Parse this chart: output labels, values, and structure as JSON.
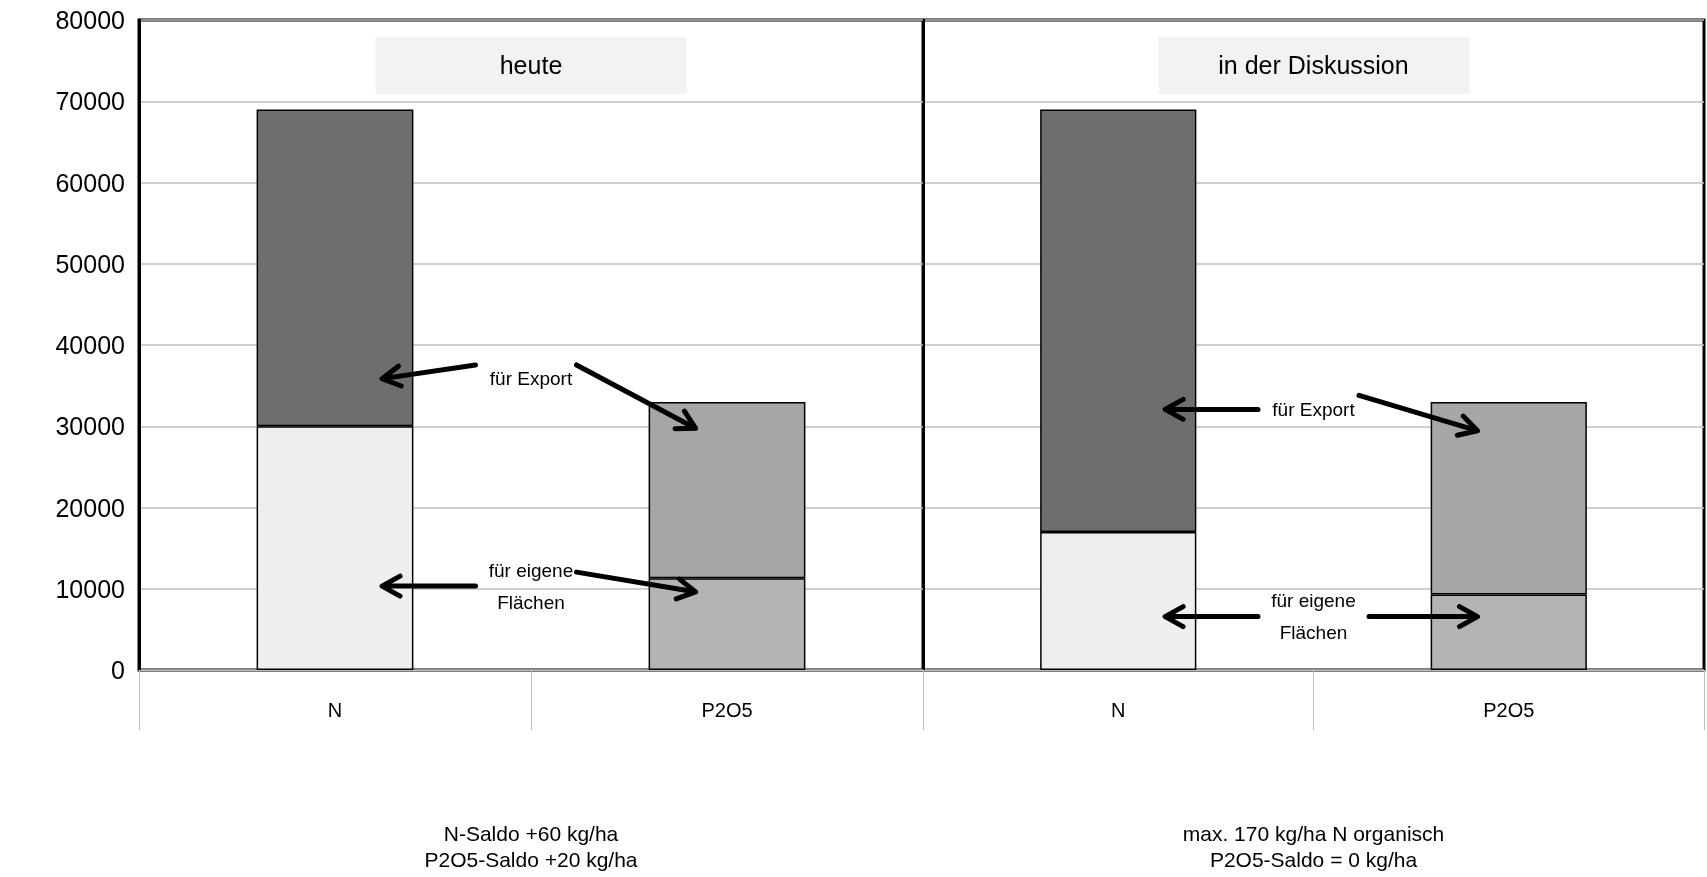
{
  "chart_data": [
    {
      "type": "bar",
      "title": "heute",
      "xlabel": "N-Saldo +60 kg/ha\nP2O5-Saldo +20 kg/ha",
      "categories": [
        "N",
        "P2O5"
      ],
      "stacked": true,
      "series": [
        {
          "values": [
            30000,
            11300
          ],
          "colors": [
            "#eeeeee",
            "#b4b4b4"
          ]
        },
        {
          "values": [
            39000,
            21700
          ],
          "colors": [
            "#6e6e6e",
            "#a6a6a6"
          ]
        }
      ],
      "ylim": [
        0,
        80000
      ],
      "yticks": [
        0,
        10000,
        20000,
        30000,
        40000,
        50000,
        60000,
        70000,
        80000
      ],
      "grid": "y",
      "annotations": [
        "für Export",
        "für eigene\nFlächen"
      ]
    },
    {
      "type": "bar",
      "title": "in der Diskussion",
      "xlabel": "max. 170 kg/ha N organisch\nP2O5-Saldo = 0 kg/ha",
      "categories": [
        "N",
        "P2O5"
      ],
      "stacked": true,
      "series": [
        {
          "values": [
            17000,
            9300
          ],
          "colors": [
            "#eeeeee",
            "#b4b4b4"
          ]
        },
        {
          "values": [
            52000,
            23700
          ],
          "colors": [
            "#6e6e6e",
            "#a6a6a6"
          ]
        }
      ],
      "ylim": [
        0,
        80000
      ],
      "yticks": [
        0,
        10000,
        20000,
        30000,
        40000,
        50000,
        60000,
        70000,
        80000
      ],
      "grid": "y",
      "tick_labels": "x",
      "annotations": [
        "für Export",
        "für eigene\nFlächen"
      ]
    }
  ]
}
